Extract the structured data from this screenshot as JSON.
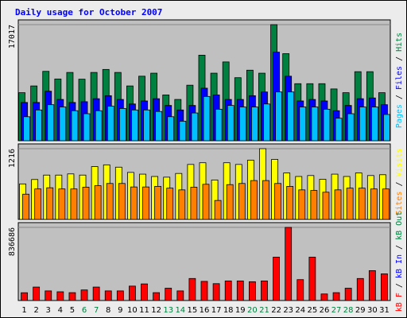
{
  "chart_data": {
    "type": "bar",
    "title": "Daily usage for October 2007",
    "colors": {
      "background": "#ececec",
      "plot": "#c0c0c0",
      "title": "#0000ff",
      "hits": "#008040",
      "files": "#0000ff",
      "pages": "#00c0ff",
      "visits": "#ffff00",
      "sites": "#ff8000",
      "kb_out": "#008040",
      "kb_in": "#0000ff",
      "kb_f": "#ff0000",
      "weekday": "#000000",
      "weekend": "#008040"
    },
    "days": [
      "1",
      "2",
      "3",
      "4",
      "5",
      "6",
      "7",
      "8",
      "9",
      "10",
      "11",
      "12",
      "13",
      "14",
      "15",
      "16",
      "17",
      "18",
      "19",
      "20",
      "21",
      "22",
      "23",
      "24",
      "25",
      "26",
      "27",
      "28",
      "29",
      "30",
      "31"
    ],
    "weekend_days": [
      "6",
      "7",
      "13",
      "14",
      "20",
      "21",
      "27",
      "28"
    ],
    "panels": [
      {
        "name": "hits-files-pages",
        "ylim": [
          0,
          17017
        ],
        "max_label": "17017",
        "axis_labels": [
          {
            "text": "Pages",
            "color": "#00c0ff"
          },
          {
            "text": " / ",
            "color": "#000000"
          },
          {
            "text": "Files",
            "color": "#0000ff"
          },
          {
            "text": " / ",
            "color": "#000000"
          },
          {
            "text": "Hits",
            "color": "#008040"
          }
        ],
        "series": [
          {
            "name": "Hits",
            "color": "#008040",
            "values": [
              7040,
              8030,
              10170,
              9050,
              10010,
              9020,
              10010,
              10450,
              10010,
              8030,
              9460,
              9900,
              6710,
              6050,
              8140,
              12540,
              9900,
              11550,
              9240,
              10340,
              9900,
              17017,
              12760,
              8360,
              8360,
              8360,
              7590,
              7040,
              10120,
              10120,
              7040
            ]
          },
          {
            "name": "Files",
            "color": "#0000ff",
            "values": [
              5610,
              5610,
              7260,
              6050,
              5610,
              5720,
              6160,
              6600,
              6050,
              5390,
              5830,
              6160,
              5170,
              4510,
              5170,
              7700,
              6710,
              6050,
              6050,
              6600,
              7150,
              12980,
              9460,
              5830,
              6050,
              5830,
              4400,
              5170,
              6160,
              6270,
              5280
            ]
          },
          {
            "name": "Pages",
            "color": "#00c0ff",
            "values": [
              3520,
              4510,
              5280,
              4950,
              4400,
              3960,
              4400,
              5060,
              4730,
              4510,
              4510,
              4290,
              3520,
              2860,
              4070,
              6490,
              4620,
              5170,
              4950,
              4950,
              5390,
              7150,
              7150,
              4950,
              4950,
              4620,
              3300,
              3960,
              4950,
              4950,
              3850
            ]
          }
        ]
      },
      {
        "name": "visits-sites",
        "ylim": [
          0,
          1216
        ],
        "max_label": "1216",
        "axis_labels": [
          {
            "text": "Sites",
            "color": "#ff8000"
          },
          {
            "text": " / ",
            "color": "#000000"
          },
          {
            "text": "Visits",
            "color": "#ffff00"
          }
        ],
        "series": [
          {
            "name": "Visits",
            "color": "#ffff00",
            "values": [
              610,
              686,
              762,
              762,
              782,
              762,
              908,
              938,
              898,
              808,
              778,
              738,
              726,
              790,
              945,
              974,
              678,
              974,
              945,
              1018,
              1216,
              1032,
              798,
              738,
              754,
              690,
              778,
              738,
              798,
              754,
              768
            ]
          },
          {
            "name": "Sites",
            "color": "#ff8000",
            "values": [
              434,
              524,
              544,
              524,
              524,
              554,
              580,
              618,
              618,
              558,
              558,
              568,
              538,
              508,
              554,
              604,
              326,
              598,
              618,
              668,
              668,
              618,
              568,
              508,
              498,
              468,
              508,
              538,
              538,
              524,
              524
            ]
          }
        ]
      },
      {
        "name": "kbytes",
        "ylim": [
          0,
          836686
        ],
        "max_label": "836686",
        "axis_labels": [
          {
            "text": "kB F",
            "color": "#ff0000"
          },
          {
            "text": " / ",
            "color": "#000000"
          },
          {
            "text": "kB In",
            "color": "#0000ff"
          },
          {
            "text": " / ",
            "color": "#000000"
          },
          {
            "text": "kB Out",
            "color": "#008040"
          }
        ],
        "series": [
          {
            "name": "kB F",
            "color": "#ff0000",
            "values": [
              89000,
              154000,
              110000,
              100000,
              90000,
              121000,
              154000,
              110000,
              110000,
              165000,
              190000,
              90000,
              141000,
              110000,
              252000,
              219000,
              193000,
              224000,
              224000,
              215000,
              224000,
              496000,
              836686,
              239000,
              496000,
              75000,
              90000,
              141000,
              252000,
              342000,
              305000
            ]
          }
        ]
      }
    ]
  }
}
